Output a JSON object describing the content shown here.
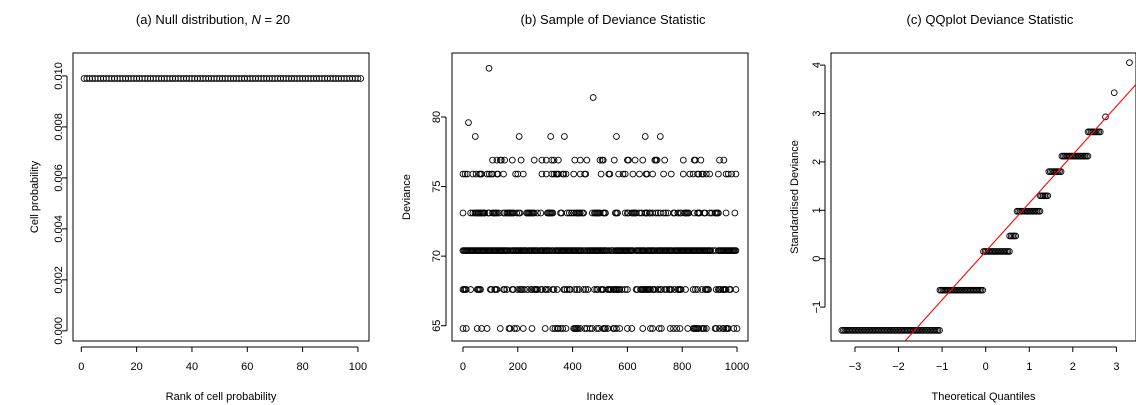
{
  "chart_data": [
    {
      "type": "scatter",
      "title_prefix": "(a) Null distribution, ",
      "title_var": "N",
      "title_suffix": " = 20",
      "xlabel": "Rank of cell probability",
      "ylabel": "Cell probability",
      "xlim": [
        -3,
        104
      ],
      "ylim": [
        -0.0004,
        0.0109
      ],
      "xticks": [
        0,
        20,
        40,
        60,
        80,
        100
      ],
      "xtick_labels": [
        "0",
        "20",
        "40",
        "60",
        "80",
        "100"
      ],
      "yticks": [
        0,
        0.002,
        0.004,
        0.006,
        0.008,
        0.01
      ],
      "ytick_labels": [
        "0.000",
        "0.002",
        "0.004",
        "0.006",
        "0.008",
        "0.010"
      ],
      "grid": false,
      "series": [
        {
          "x_range": [
            1,
            101
          ],
          "value": 0.0099
        }
      ]
    },
    {
      "type": "scatter",
      "title": "(b) Sample of Deviance Statistic",
      "xlabel": "Index",
      "ylabel": "Deviance",
      "xlim": [
        -40,
        1040
      ],
      "ylim": [
        63.9,
        84.6
      ],
      "xticks": [
        0,
        200,
        400,
        600,
        800,
        1000
      ],
      "xtick_labels": [
        "0",
        "200",
        "400",
        "600",
        "800",
        "1000"
      ],
      "yticks": [
        65,
        70,
        75,
        80
      ],
      "ytick_labels": [
        "65",
        "70",
        "75",
        "80"
      ],
      "grid": false,
      "levels": [
        64.8,
        67.6,
        70.4,
        73.1,
        75.9,
        76.9,
        78.6,
        79.6,
        81.4,
        83.5
      ],
      "series": [
        {
          "points": [
            [
              20,
              79.6
            ],
            [
              95,
              83.5
            ],
            [
              475,
              81.4
            ],
            [
              45,
              78.6
            ],
            [
              205,
              78.6
            ],
            [
              320,
              78.6
            ],
            [
              370,
              78.6
            ],
            [
              560,
              78.6
            ],
            [
              665,
              78.6
            ],
            [
              720,
              78.6
            ]
          ]
        }
      ]
    },
    {
      "type": "scatter",
      "title": "(c) QQplot Deviance Statistic",
      "xlabel": "Theoretical Quantiles",
      "ylabel": "Standardised Deviance",
      "xlim": [
        -3.55,
        3.45
      ],
      "ylim": [
        -1.7,
        4.25
      ],
      "xticks": [
        -3,
        -2,
        -1,
        0,
        1,
        2,
        3
      ],
      "xtick_labels": [
        "−3",
        "−2",
        "−1",
        "0",
        "1",
        "2",
        "3"
      ],
      "yticks": [
        -1,
        0,
        1,
        2,
        3,
        4
      ],
      "ytick_labels": [
        "−1",
        "0",
        "1",
        "2",
        "3",
        "4"
      ],
      "grid": false,
      "reference_line": {
        "intercept": 0.15,
        "slope": 1.0,
        "color": "#ff0000"
      },
      "steps": [
        {
          "x": [
            -3.3,
            -1.05
          ],
          "y": -1.48
        },
        {
          "x": [
            -1.05,
            -0.05
          ],
          "y": -0.65
        },
        {
          "x": [
            -0.05,
            0.55
          ],
          "y": 0.15
        },
        {
          "x": [
            0.55,
            0.72
          ],
          "y": 0.47
        },
        {
          "x": [
            0.72,
            1.25
          ],
          "y": 0.98
        },
        {
          "x": [
            1.25,
            1.45
          ],
          "y": 1.3
        },
        {
          "x": [
            1.45,
            1.75
          ],
          "y": 1.8
        },
        {
          "x": [
            1.75,
            2.35
          ],
          "y": 2.12
        },
        {
          "x": [
            2.35,
            2.65
          ],
          "y": 2.62
        }
      ],
      "outliers": [
        [
          2.75,
          2.93
        ],
        [
          2.95,
          3.43
        ],
        [
          3.3,
          4.05
        ]
      ]
    }
  ]
}
